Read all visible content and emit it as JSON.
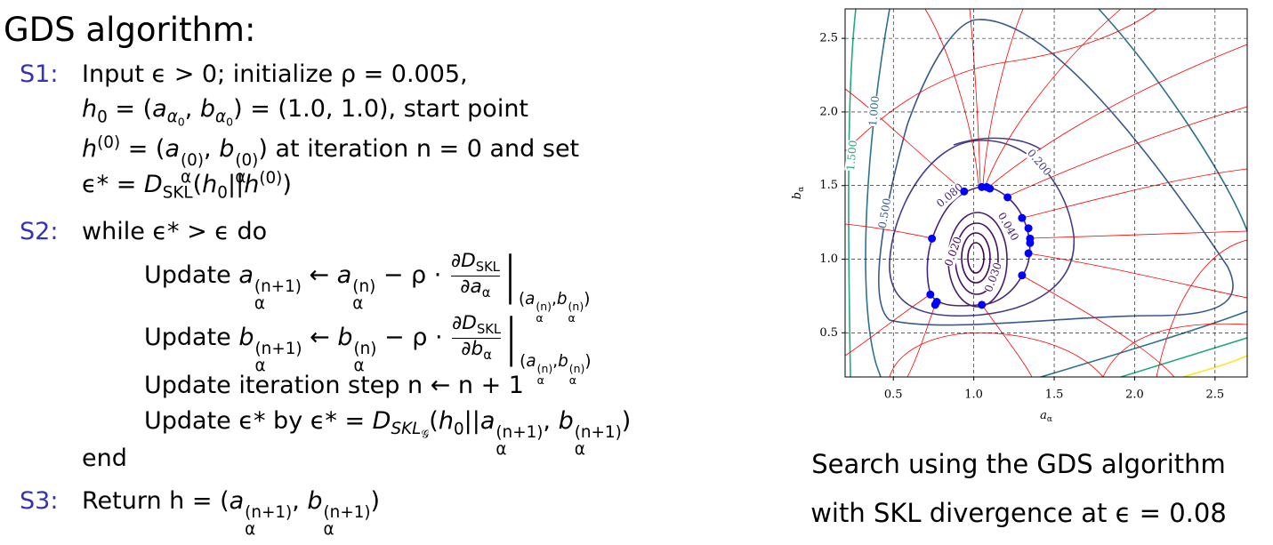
{
  "title": "GDS algorithm:",
  "steps": [
    {
      "label": "S1:",
      "lines": [
        [
          "Input ϵ > 0; initialize ρ = 0.005,"
        ],
        [
          {
            "base": "h",
            "sub": "0"
          },
          " = (",
          {
            "base": "a",
            "sub": [
              {
                "base": "α",
                "sub": "0"
              }
            ]
          },
          ", ",
          {
            "base": "b",
            "sub": [
              {
                "base": "α",
                "sub": "0"
              }
            ]
          },
          ") = (1.0, 1.0), start point"
        ],
        [
          {
            "base": "h",
            "sup": "(0)"
          },
          " = (",
          {
            "base": "a",
            "sub": "α",
            "sup": "(0)"
          },
          ", ",
          {
            "base": "b",
            "sub": "α",
            "sup": "(0)"
          },
          ") at iteration n = 0 and set"
        ],
        [
          "ϵ* = ",
          {
            "base": "D",
            "sub": "SKL"
          },
          "(",
          {
            "base": "h",
            "sub": "0"
          },
          "||",
          {
            "base": "h",
            "sup": "(0)"
          },
          ")"
        ]
      ]
    },
    {
      "label": "S2:",
      "lines": [
        [
          "while ϵ* > ϵ do"
        ],
        [
          "Update ",
          {
            "base": "a",
            "sub": "α",
            "sup": "(n+1)"
          },
          " ← ",
          {
            "base": "a",
            "sub": "α",
            "sup": "(n)"
          },
          " − ρ · ",
          {
            "num": [
              {
                "base": "∂D",
                "sub": "SKL"
              }
            ],
            "den": [
              {
                "base": "∂a",
                "sub": "α"
              }
            ]
          },
          {
            "eval": "|",
            "sub": [
              "(",
              {
                "base": "a",
                "sub": "α",
                "sup": "(n)"
              },
              ",",
              {
                "base": "b",
                "sub": "α",
                "sup": "(n)"
              },
              ")"
            ]
          }
        ],
        [
          "Update ",
          {
            "base": "b",
            "sub": "α",
            "sup": "(n+1)"
          },
          " ← ",
          {
            "base": "b",
            "sub": "α",
            "sup": "(n)"
          },
          " − ρ · ",
          {
            "num": [
              {
                "base": "∂D",
                "sub": "SKL"
              }
            ],
            "den": [
              {
                "base": "∂b",
                "sub": "α"
              }
            ]
          },
          {
            "eval": "|",
            "sub": [
              "(",
              {
                "base": "a",
                "sub": "α",
                "sup": "(n)"
              },
              ",",
              {
                "base": "b",
                "sub": "α",
                "sup": "(n)"
              },
              ")"
            ]
          }
        ],
        [
          "Update iteration step n ← n + 1"
        ],
        [
          "Update ϵ* by ϵ* = ",
          {
            "base": "D",
            "sub": [
              {
                "base": "SKL",
                "sub": "𝒢"
              }
            ]
          },
          "(",
          {
            "base": "h",
            "sub": "0"
          },
          "||",
          {
            "base": "a",
            "sub": "α",
            "sup": "(n+1)"
          },
          ", ",
          {
            "base": "b",
            "sub": "α",
            "sup": "(n+1)"
          },
          ")"
        ],
        [
          "end"
        ]
      ]
    },
    {
      "label": "S3:",
      "lines": [
        [
          "Return h = (",
          {
            "base": "a",
            "sub": "α",
            "sup": "(n+1)"
          },
          ", ",
          {
            "base": "b",
            "sub": "α",
            "sup": "(n+1)"
          },
          ")"
        ]
      ]
    }
  ],
  "chart_data": {
    "type": "scatter",
    "x": [
      1.05,
      1.08,
      1.1,
      0.94,
      1.21,
      1.3,
      1.34,
      1.35,
      1.35,
      1.34,
      0.74,
      1.3,
      1.05,
      0.73,
      0.77,
      0.76
    ],
    "values": [
      1.49,
      1.49,
      1.48,
      1.46,
      1.42,
      1.28,
      1.21,
      1.14,
      1.11,
      1.04,
      1.14,
      0.89,
      0.69,
      0.76,
      0.71,
      0.69
    ],
    "color": "#0000ff",
    "xlabel": {
      "base": "a",
      "sub": "α"
    },
    "ylabel": {
      "base": "b",
      "sub": "α"
    },
    "xlim": [
      0.2,
      2.7
    ],
    "ylim": [
      0.2,
      2.7
    ],
    "xticks": [
      {
        "value": 0.5,
        "label": "0.5"
      },
      {
        "value": 1,
        "label": "1.0"
      },
      {
        "value": 1.5,
        "label": "1.5"
      },
      {
        "value": 2,
        "label": "2.0"
      },
      {
        "value": 2.5,
        "label": "2.5"
      }
    ],
    "yticks": [
      {
        "value": 0.5,
        "label": "0.5"
      },
      {
        "value": 1,
        "label": "1.0"
      },
      {
        "value": 1.5,
        "label": "1.5"
      },
      {
        "value": 2,
        "label": "2.0"
      },
      {
        "value": 2.5,
        "label": "2.5"
      }
    ],
    "grid": true,
    "contour_labels": [
      "0.020",
      "0.030",
      "0.040",
      "0.080",
      "0.200",
      "0.500",
      "1.000",
      "1.500"
    ]
  },
  "caption": [
    "Search using the GDS algorithm",
    "with SKL divergence at ϵ = 0.08"
  ]
}
